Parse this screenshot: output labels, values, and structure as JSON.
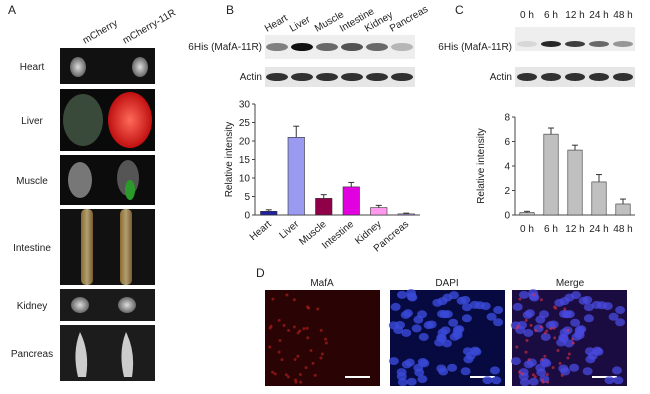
{
  "panel_letters": [
    "A",
    "B",
    "C",
    "D"
  ],
  "panel_a": {
    "columns": [
      "mCherry",
      "mCherry-11R"
    ],
    "rows": [
      "Heart",
      "Liver",
      "Muscle",
      "Intestine",
      "Kidney",
      "Pancreas"
    ]
  },
  "blots": {
    "target": "6His (MafA-11R)",
    "control": "Actin"
  },
  "panel_d": {
    "columns": [
      "MafA",
      "DAPI",
      "Merge"
    ]
  },
  "chart_data": [
    {
      "type": "bar",
      "categories": [
        "Heart",
        "Liver",
        "Muscle",
        "Intestine",
        "Kidney",
        "Pancreas"
      ],
      "values": [
        1.0,
        21,
        4.5,
        7.6,
        2.0,
        0.3
      ],
      "errors": [
        0.4,
        3.0,
        1.0,
        1.2,
        0.6,
        0.2
      ],
      "colors": [
        "#2020a0",
        "#9a9af0",
        "#900048",
        "#e000e0",
        "#ff99ee",
        "#c8a0f0"
      ],
      "ylabel": "Relative intensity",
      "ylim": [
        0,
        30
      ],
      "yticks": [
        0,
        5,
        10,
        15,
        20,
        25,
        30
      ]
    },
    {
      "type": "bar",
      "categories": [
        "0 h",
        "6 h",
        "12 h",
        "24 h",
        "48 h"
      ],
      "values": [
        0.2,
        6.6,
        5.3,
        2.7,
        0.9
      ],
      "errors": [
        0.1,
        0.5,
        0.4,
        0.6,
        0.4
      ],
      "color": "#c0c0c0",
      "ylabel": "Relative intensity",
      "ylim": [
        0,
        8
      ],
      "yticks": [
        0,
        2,
        4,
        6,
        8
      ]
    }
  ]
}
